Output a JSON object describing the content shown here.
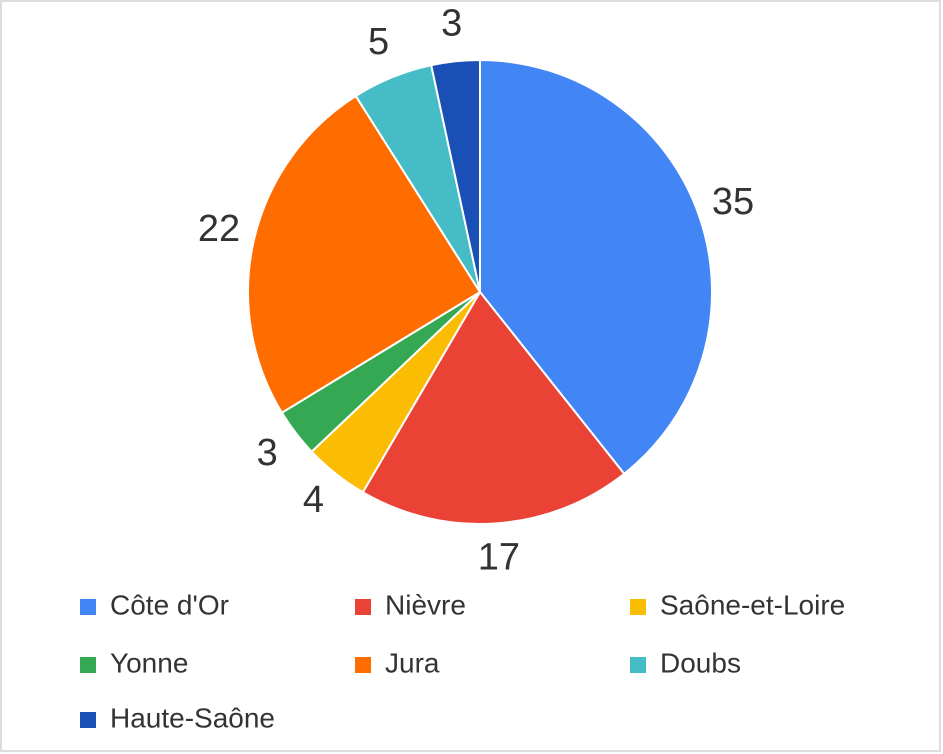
{
  "chart_data": {
    "type": "pie",
    "categories": [
      "Côte d'Or",
      "Nièvre",
      "Saône-et-Loire",
      "Yonne",
      "Jura",
      "Doubs",
      "Haute-Saône"
    ],
    "values": [
      35,
      17,
      4,
      3,
      22,
      5,
      3
    ],
    "colors": [
      "#4285f4",
      "#ea4335",
      "#fbbc04",
      "#34a853",
      "#ff6d01",
      "#46bdc6",
      "#1a4fb5"
    ],
    "legend": "bottom"
  }
}
